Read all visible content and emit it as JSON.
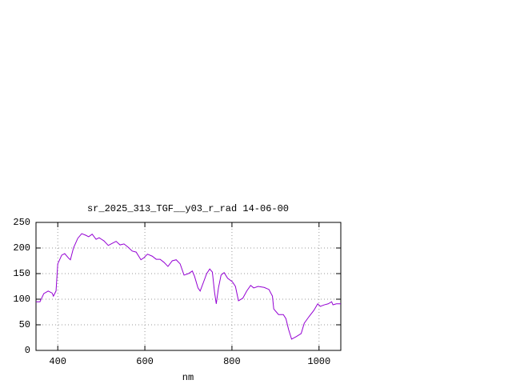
{
  "chart_data": {
    "type": "line",
    "title": "sr_2025_313_TGF__y03_r_rad 14-06-00",
    "x_label": "nm",
    "x": [
      350,
      359,
      368,
      378,
      387,
      390,
      396,
      400,
      409,
      416,
      425,
      429,
      436,
      446,
      455,
      464,
      471,
      479,
      488,
      495,
      506,
      516,
      525,
      534,
      543,
      552,
      561,
      571,
      580,
      591,
      598,
      606,
      617,
      626,
      635,
      644,
      653,
      663,
      672,
      681,
      690,
      700,
      709,
      714,
      722,
      727,
      735,
      742,
      749,
      755,
      760,
      764,
      769,
      775,
      782,
      790,
      801,
      808,
      815,
      825,
      834,
      843,
      850,
      860,
      874,
      885,
      893,
      896,
      907,
      918,
      924,
      930,
      937,
      948,
      959,
      966,
      977,
      988,
      997,
      1003,
      1012,
      1021,
      1029,
      1032,
      1040,
      1050
    ],
    "series": [
      {
        "color": "#9400d3",
        "values": [
          95,
          95,
          111,
          116,
          112,
          106,
          116,
          169,
          186,
          189,
          180,
          177,
          200,
          219,
          228,
          225,
          222,
          227,
          217,
          220,
          214,
          205,
          209,
          213,
          206,
          208,
          202,
          194,
          192,
          177,
          181,
          188,
          184,
          178,
          178,
          172,
          164,
          175,
          177,
          169,
          147,
          150,
          155,
          145,
          122,
          116,
          134,
          150,
          159,
          153,
          114,
          91,
          122,
          147,
          152,
          141,
          134,
          125,
          97,
          102,
          116,
          127,
          122,
          125,
          123,
          119,
          106,
          81,
          70,
          70,
          62,
          41,
          22,
          27,
          33,
          53,
          66,
          78,
          91,
          86,
          89,
          91,
          95,
          89,
          91,
          91
        ]
      }
    ],
    "xlim": [
      350,
      1050
    ],
    "xticks": [
      400,
      600,
      800,
      1000
    ],
    "ylim": [
      0,
      250
    ],
    "yticks": [
      0,
      50,
      100,
      150,
      200,
      250
    ],
    "grid": true
  }
}
